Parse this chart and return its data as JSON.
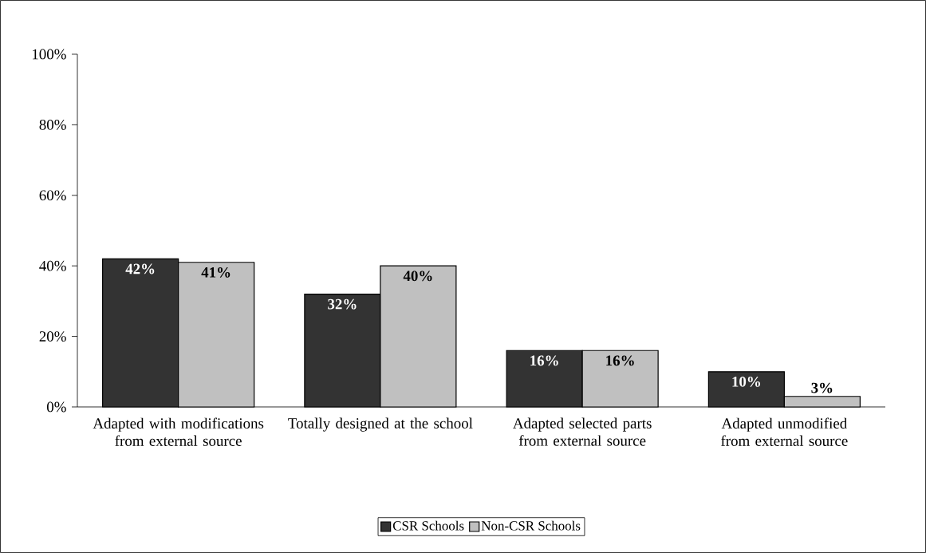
{
  "chart_data": {
    "type": "bar",
    "categories": [
      "Adapted with modifications from external source",
      "Totally designed at the school",
      "Adapted selected parts from external source",
      "Adapted unmodified from external source"
    ],
    "series": [
      {
        "name": "CSR Schools",
        "color": "#333333",
        "values": [
          42,
          32,
          16,
          10
        ],
        "value_labels": [
          "42%",
          "32%",
          "16%",
          "10%"
        ]
      },
      {
        "name": "Non-CSR Schools",
        "color": "#c0c0c0",
        "values": [
          41,
          40,
          16,
          3
        ],
        "value_labels": [
          "41%",
          "40%",
          "16%",
          "3%"
        ]
      }
    ],
    "ylim": [
      0,
      100
    ],
    "yticks": [
      {
        "value": 0,
        "label": "0%"
      },
      {
        "value": 20,
        "label": "20%"
      },
      {
        "value": 40,
        "label": "40%"
      },
      {
        "value": 60,
        "label": "60%"
      },
      {
        "value": 80,
        "label": "80%"
      },
      {
        "value": 100,
        "label": "100%"
      }
    ],
    "legend": "bottom"
  }
}
